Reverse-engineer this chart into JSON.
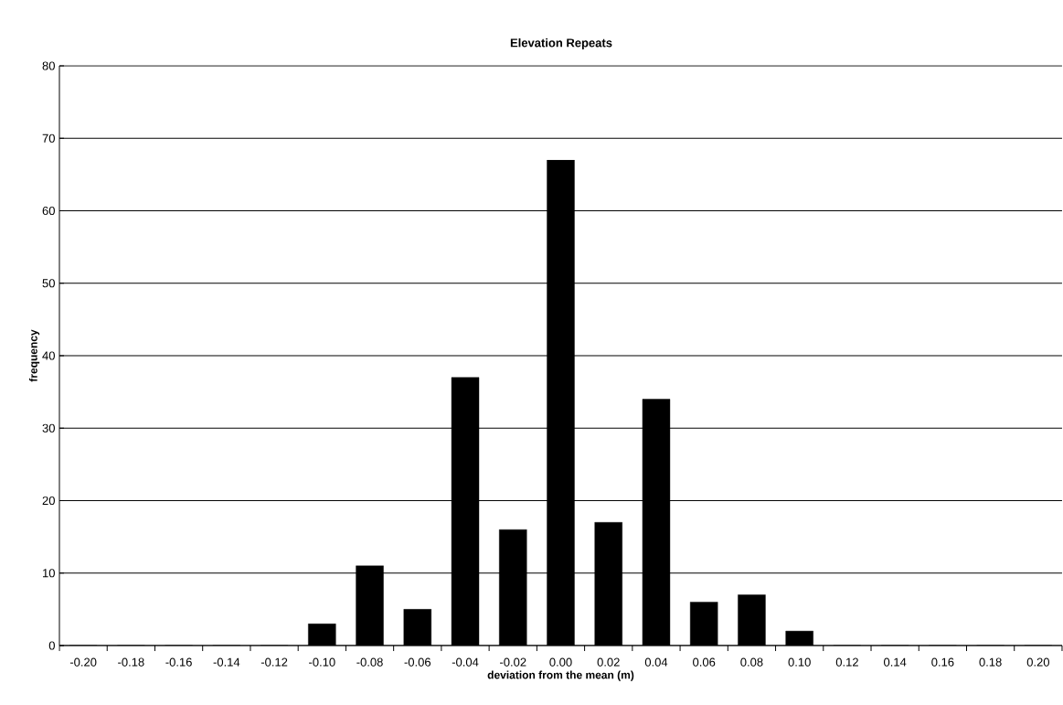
{
  "chart_data": {
    "type": "bar",
    "title": "Elevation Repeats",
    "xlabel": "deviation from the mean (m)",
    "ylabel": "frequency",
    "categories": [
      "-0.20",
      "-0.18",
      "-0.16",
      "-0.14",
      "-0.12",
      "-0.10",
      "-0.08",
      "-0.06",
      "-0.04",
      "-0.02",
      "0.00",
      "0.02",
      "0.04",
      "0.06",
      "0.08",
      "0.10",
      "0.12",
      "0.14",
      "0.16",
      "0.18",
      "0.20"
    ],
    "values": [
      0,
      0,
      0,
      0,
      0,
      3,
      11,
      5,
      37,
      16,
      67,
      17,
      34,
      6,
      7,
      2,
      0,
      0,
      0,
      0,
      0
    ],
    "color": "#000000",
    "ylim": [
      0,
      80
    ],
    "yticks": [
      0,
      10,
      20,
      30,
      40,
      50,
      60,
      70,
      80
    ],
    "grid": "y"
  }
}
